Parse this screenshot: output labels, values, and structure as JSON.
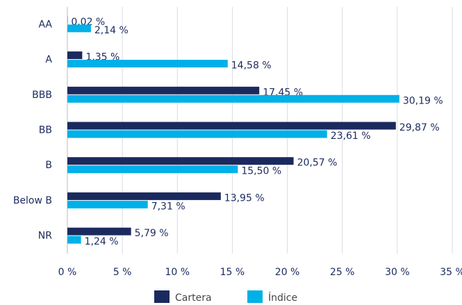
{
  "chart_data": {
    "type": "hbar",
    "categories": [
      "AA",
      "A",
      "BBB",
      "BB",
      "B",
      "Below B",
      "NR"
    ],
    "series": [
      {
        "name": "Cartera",
        "color": "#1b2a5e",
        "values": [
          0.02,
          1.35,
          17.45,
          29.87,
          20.57,
          13.95,
          5.79
        ],
        "value_labels": [
          "0,02 %",
          "1,35 %",
          "17,45 %",
          "29,87 %",
          "20,57 %",
          "13,95 %",
          "5,79 %"
        ]
      },
      {
        "name": "Índice",
        "color": "#00b0e8",
        "values": [
          2.14,
          14.58,
          30.19,
          23.61,
          15.5,
          7.31,
          1.24
        ],
        "value_labels": [
          "2,14 %",
          "14,58 %",
          "30,19 %",
          "23,61 %",
          "15,50 %",
          "7,31 %",
          "1,24 %"
        ]
      }
    ],
    "xlim": [
      0,
      35
    ],
    "xticks": [
      {
        "value": 0,
        "label": "0 %"
      },
      {
        "value": 5,
        "label": "5 %"
      },
      {
        "value": 10,
        "label": "10 %"
      },
      {
        "value": 15,
        "label": "15 %"
      },
      {
        "value": 20,
        "label": "20 %"
      },
      {
        "value": 25,
        "label": "25 %"
      },
      {
        "value": 30,
        "label": "30 %"
      },
      {
        "value": 35,
        "label": "35 %"
      }
    ],
    "grid": true
  }
}
